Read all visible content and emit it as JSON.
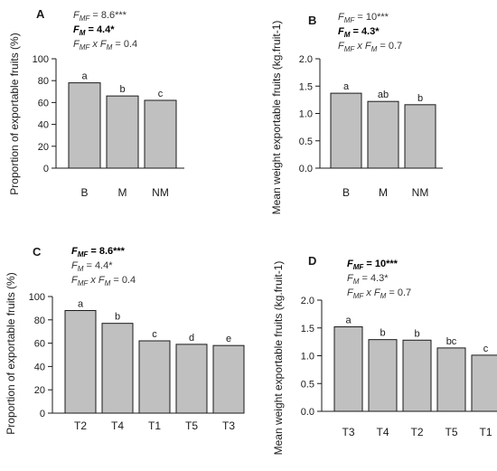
{
  "chart_data": [
    {
      "panel": "A",
      "type": "bar",
      "categories": [
        "B",
        "M",
        "NM"
      ],
      "values": [
        78,
        66,
        62
      ],
      "significance_letters": [
        "a",
        "b",
        "c"
      ],
      "ylabel": "Proportion of exportable fruits (%)",
      "xlabel": "",
      "ylim": [
        0,
        100
      ],
      "yticks": [
        0,
        20,
        40,
        60,
        80,
        100
      ],
      "ytick_labels": [
        "0",
        "20",
        "40",
        "60",
        "80",
        "100"
      ],
      "stats": [
        {
          "var": "F",
          "sub": "MF",
          "rest": " = 8.6***",
          "bold": false
        },
        {
          "var": "F",
          "sub": "M",
          "rest": " = 4.4*",
          "bold": true
        },
        {
          "var": "F",
          "sub": "MF",
          "mid": " x ",
          "var2": "F",
          "sub2": "M",
          "rest": " = 0.4",
          "bold": false
        }
      ]
    },
    {
      "panel": "B",
      "type": "bar",
      "categories": [
        "B",
        "M",
        "NM"
      ],
      "values": [
        1.37,
        1.22,
        1.16
      ],
      "significance_letters": [
        "a",
        "ab",
        "b"
      ],
      "ylabel": "Mean weight exportable fruits (kg.fruit-1)",
      "xlabel": "",
      "ylim": [
        0,
        2.0
      ],
      "yticks": [
        0,
        0.5,
        1.0,
        1.5,
        2.0
      ],
      "ytick_labels": [
        "0.0",
        "0.5",
        "1.0",
        "1.5",
        "2.0"
      ],
      "stats": [
        {
          "var": "F",
          "sub": "MF",
          "rest": " = 10***",
          "bold": false
        },
        {
          "var": "F",
          "sub": "M",
          "rest": " = 4.3*",
          "bold": true
        },
        {
          "var": "F",
          "sub": "MF",
          "mid": " x ",
          "var2": "F",
          "sub2": "M",
          "rest": " = 0.7",
          "bold": false
        }
      ]
    },
    {
      "panel": "C",
      "type": "bar",
      "categories": [
        "T2",
        "T4",
        "T1",
        "T5",
        "T3"
      ],
      "values": [
        88,
        77,
        62,
        59,
        58
      ],
      "significance_letters": [
        "a",
        "b",
        "c",
        "d",
        "e"
      ],
      "ylabel": "Proportion of exportable fruits (%)",
      "xlabel": "",
      "ylim": [
        0,
        100
      ],
      "yticks": [
        0,
        20,
        40,
        60,
        80,
        100
      ],
      "ytick_labels": [
        "0",
        "20",
        "40",
        "60",
        "80",
        "100"
      ],
      "stats": [
        {
          "var": "F",
          "sub": "MF",
          "rest": " = 8.6***",
          "bold": true
        },
        {
          "var": "F",
          "sub": "M",
          "rest": " = 4.4*",
          "bold": false
        },
        {
          "var": "F",
          "sub": "MF",
          "mid": " x ",
          "var2": "F",
          "sub2": "M",
          "rest": " = 0.4",
          "bold": false
        }
      ]
    },
    {
      "panel": "D",
      "type": "bar",
      "categories": [
        "T3",
        "T4",
        "T2",
        "T5",
        "T1"
      ],
      "values": [
        1.52,
        1.29,
        1.28,
        1.14,
        1.01
      ],
      "significance_letters": [
        "a",
        "b",
        "b",
        "bc",
        "c"
      ],
      "ylabel": "Mean weight exportable fruits (kg.fruit-1)",
      "xlabel": "",
      "ylim": [
        0,
        2.0
      ],
      "yticks": [
        0,
        0.5,
        1.0,
        1.5,
        2.0
      ],
      "ytick_labels": [
        "0.0",
        "0.5",
        "1.0",
        "1.5",
        "2.0"
      ],
      "stats": [
        {
          "var": "F",
          "sub": "MF",
          "rest": " = 10***",
          "bold": true
        },
        {
          "var": "F",
          "sub": "M",
          "rest": " = 4.3*",
          "bold": false
        },
        {
          "var": "F",
          "sub": "MF",
          "mid": " x ",
          "var2": "F",
          "sub2": "M",
          "rest": " = 0.7",
          "bold": false
        }
      ]
    }
  ]
}
